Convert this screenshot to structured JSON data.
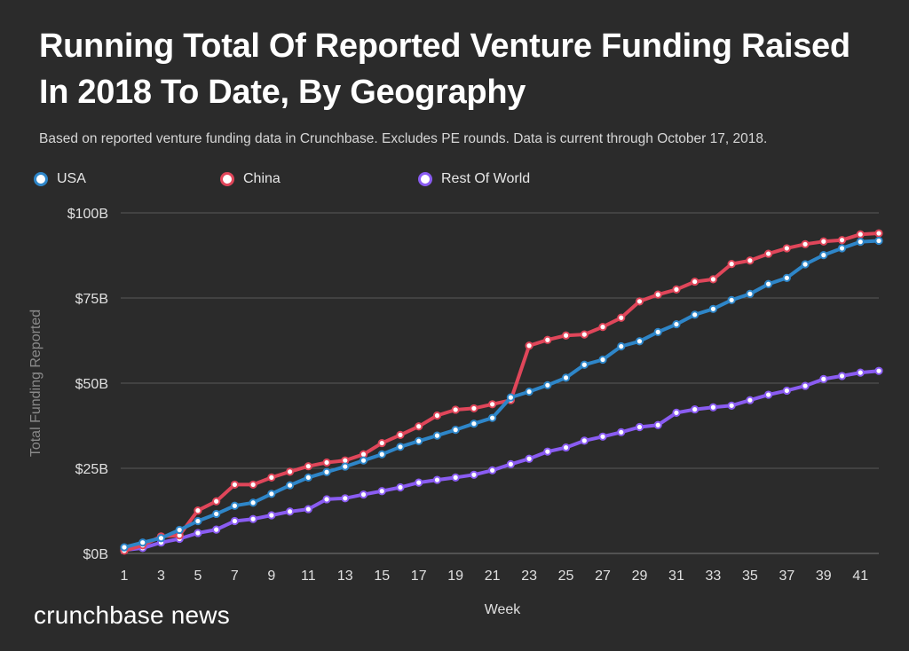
{
  "title_line1": "Running Total Of Reported Venture Funding Raised",
  "title_line2": "In 2018 To Date, By Geography",
  "subtitle": "Based on reported venture funding data in Crunchbase. Excludes PE rounds.  Data is current through October 17, 2018.",
  "brand": "crunchbase news",
  "colors": {
    "background": "#2b2b2b",
    "grid": "#5a5a5a",
    "axis_text": "#e0e0e0",
    "ylabel_text": "#8a8a8a"
  },
  "chart_data": {
    "type": "line",
    "title": "Running Total Of Reported Venture Funding Raised In 2018 To Date, By Geography",
    "xlabel": "Week",
    "ylabel": "Total Funding Reported",
    "x_tick_labels": [
      "1",
      "3",
      "5",
      "7",
      "9",
      "11",
      "13",
      "15",
      "17",
      "19",
      "21",
      "23",
      "25",
      "27",
      "29",
      "31",
      "33",
      "35",
      "37",
      "39",
      "41"
    ],
    "y_tick_labels": [
      "$0B",
      "$25B",
      "$50B",
      "$75B",
      "$100B"
    ],
    "y_tick_values": [
      0,
      25,
      50,
      75,
      100
    ],
    "xlim": [
      1,
      42
    ],
    "ylim": [
      0,
      100
    ],
    "grid": true,
    "legend_position": "top",
    "x": [
      1,
      2,
      3,
      4,
      5,
      6,
      7,
      8,
      9,
      10,
      11,
      12,
      13,
      14,
      15,
      16,
      17,
      18,
      19,
      20,
      21,
      22,
      23,
      24,
      25,
      26,
      27,
      28,
      29,
      30,
      31,
      32,
      33,
      34,
      35,
      36,
      37,
      38,
      39,
      40,
      41,
      42
    ],
    "series": [
      {
        "name": "USA",
        "color": "#2e86c9",
        "values": [
          1.8,
          3.2,
          4.5,
          6.9,
          9.5,
          11.6,
          14.0,
          14.9,
          17.5,
          20.0,
          22.3,
          23.9,
          25.5,
          27.3,
          29.1,
          31.3,
          33.0,
          34.6,
          36.3,
          38.1,
          39.8,
          45.8,
          47.5,
          49.4,
          51.6,
          55.4,
          56.9,
          60.8,
          62.3,
          65.0,
          67.3,
          70.1,
          71.8,
          74.4,
          76.2,
          79.1,
          80.9,
          84.9,
          87.6,
          89.6,
          91.5,
          91.8
        ]
      },
      {
        "name": "China",
        "color": "#e0465a",
        "values": [
          0.8,
          2.4,
          5.0,
          5.3,
          12.6,
          15.3,
          20.2,
          20.2,
          22.3,
          24.0,
          25.6,
          26.7,
          27.3,
          29.1,
          32.4,
          34.8,
          37.3,
          40.5,
          42.2,
          42.6,
          43.8,
          45.0,
          61.0,
          62.7,
          64.0,
          64.3,
          66.5,
          69.2,
          74.0,
          76.0,
          77.5,
          79.8,
          80.5,
          85.0,
          86.0,
          88.0,
          89.6,
          90.8,
          91.6,
          92.0,
          93.7,
          94.0
        ]
      },
      {
        "name": "Rest Of World",
        "color": "#8a5cf2",
        "values": [
          1.0,
          1.6,
          3.2,
          4.3,
          6.0,
          7.0,
          9.5,
          10.1,
          11.2,
          12.3,
          13.0,
          15.9,
          16.2,
          17.3,
          18.3,
          19.4,
          20.8,
          21.6,
          22.3,
          23.1,
          24.4,
          26.2,
          27.8,
          29.9,
          31.1,
          33.1,
          34.3,
          35.6,
          37.1,
          37.7,
          41.3,
          42.3,
          42.9,
          43.4,
          45.0,
          46.6,
          47.8,
          49.2,
          51.2,
          52.1,
          53.1,
          53.6
        ]
      }
    ]
  }
}
